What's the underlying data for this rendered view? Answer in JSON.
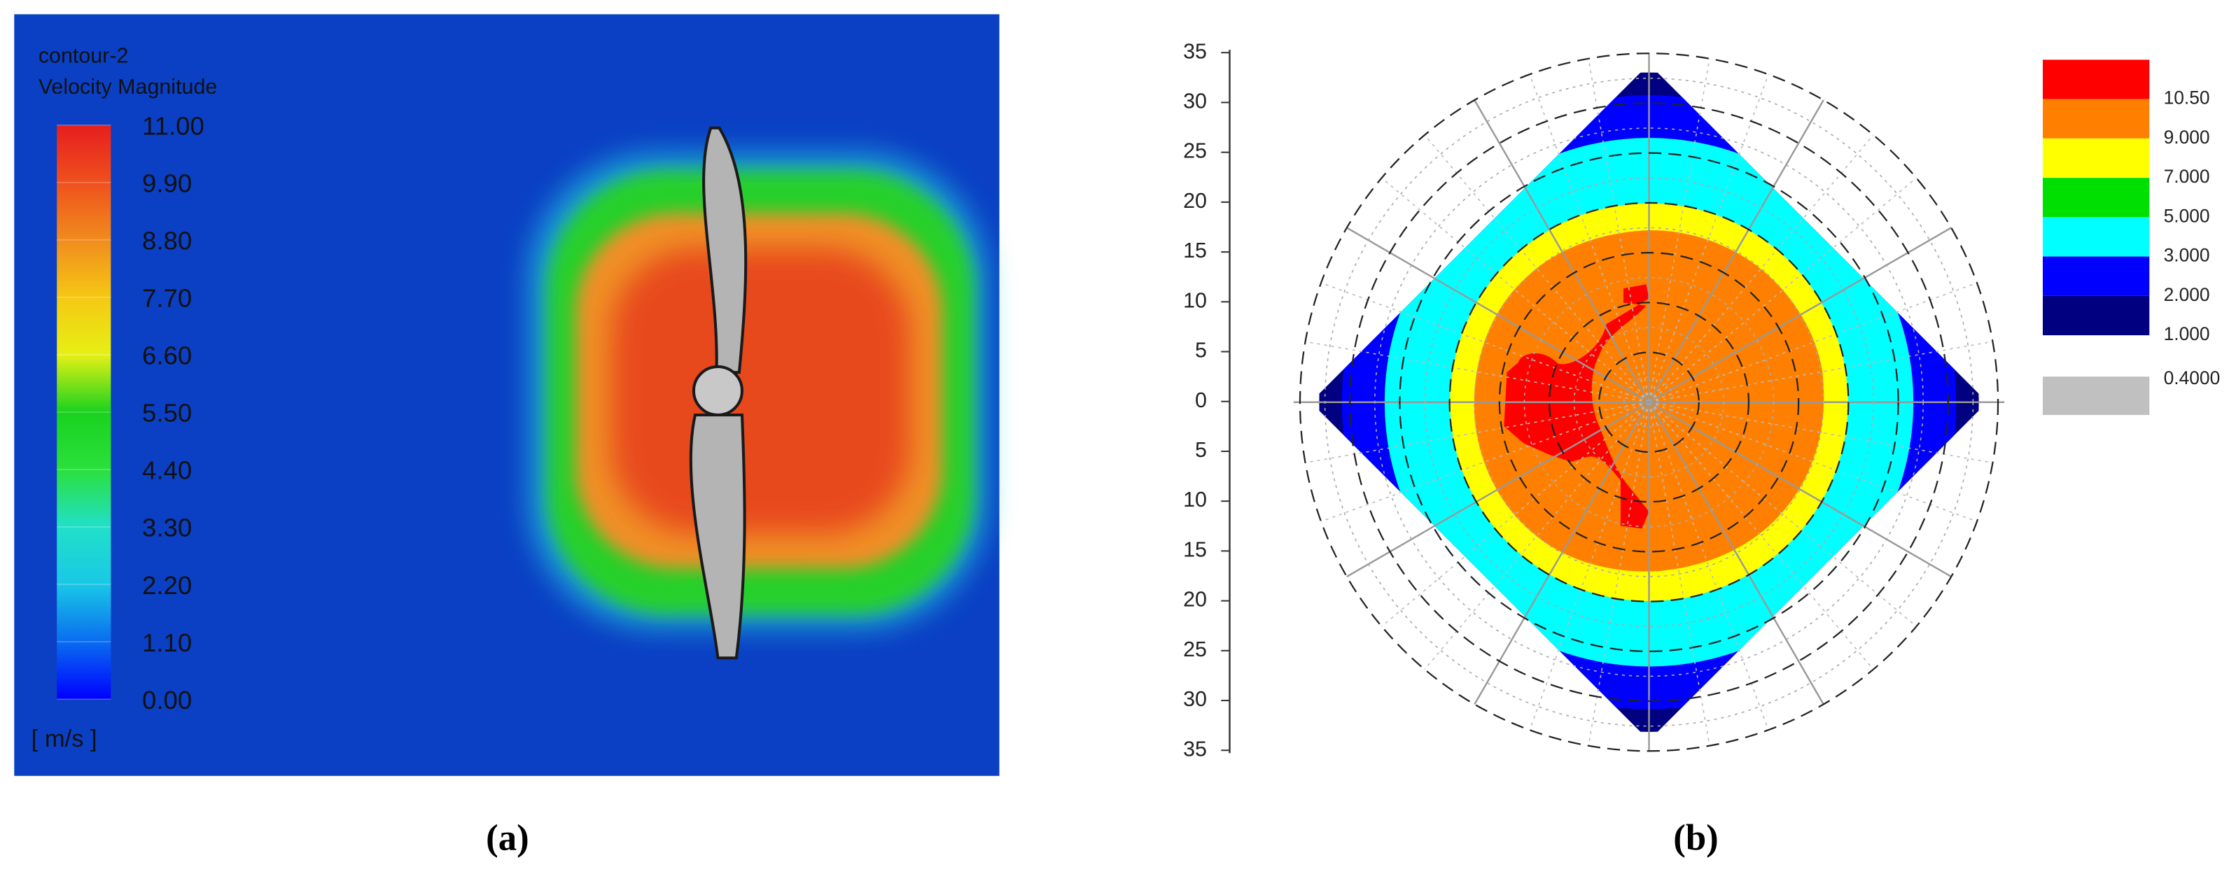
{
  "chart_data": [
    {
      "type": "contour",
      "title": "contour-2",
      "subtitle": "Velocity Magnitude",
      "unit_label": "[ m/s ]",
      "caption": "(a)",
      "ylim": [
        0,
        11
      ],
      "yticks": [
        {
          "value": 11,
          "label": "11.00"
        },
        {
          "value": 9.9,
          "label": "9.90"
        },
        {
          "value": 8.8,
          "label": "8.80"
        },
        {
          "value": 7.7,
          "label": "7.70"
        },
        {
          "value": 6.6,
          "label": "6.60"
        },
        {
          "value": 5.5,
          "label": "5.50"
        },
        {
          "value": 4.4,
          "label": "4.40"
        },
        {
          "value": 3.3,
          "label": "3.30"
        },
        {
          "value": 2.2,
          "label": "2.20"
        },
        {
          "value": 1.1,
          "label": "1.10"
        },
        {
          "value": 0,
          "label": "0.00"
        }
      ],
      "colormap": [
        "#0000ff",
        "#0a6cf0",
        "#19c8e6",
        "#21e0c8",
        "#2ae03c",
        "#19d21e",
        "#e6f014",
        "#f5c814",
        "#f08c1e",
        "#f0501e",
        "#e61e1e"
      ]
    },
    {
      "type": "polar",
      "caption": "(b)",
      "ylim": [
        -35,
        35
      ],
      "yticks": [
        35,
        30,
        25,
        20,
        15,
        10,
        5,
        0,
        {
          "value": -5,
          "label": "5"
        },
        {
          "value": -10,
          "label": "10"
        },
        {
          "value": -15,
          "label": "15"
        },
        {
          "value": -20,
          "label": "20"
        },
        {
          "value": -25,
          "label": "25"
        },
        {
          "value": -30,
          "label": "30"
        },
        {
          "value": -35,
          "label": "35"
        }
      ],
      "legend": {
        "colors": [
          "#ff0000",
          "#ff8000",
          "#ffff00",
          "#00e000",
          "#00ffff",
          "#0000ff",
          "#000080",
          "#c0c0c0"
        ],
        "levels": [
          {
            "value": 10.5,
            "label": "10.50"
          },
          {
            "value": 9,
            "label": "9.000"
          },
          {
            "value": 7,
            "label": "7.000"
          },
          {
            "value": 5,
            "label": "5.000"
          },
          {
            "value": 3,
            "label": "3.000"
          },
          {
            "value": 2,
            "label": "2.000"
          },
          {
            "value": 1,
            "label": "1.000"
          },
          {
            "value": 0.4,
            "label": "0.4000"
          }
        ]
      }
    }
  ]
}
